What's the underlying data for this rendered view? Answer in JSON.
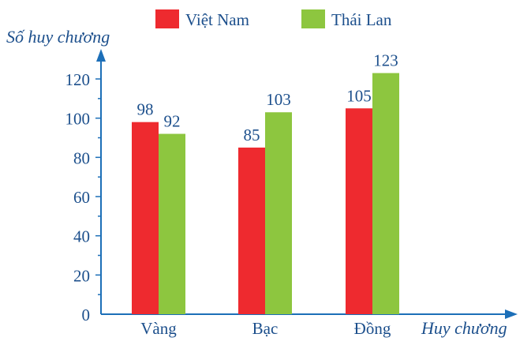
{
  "chart_data": {
    "type": "bar",
    "categories": [
      "Vàng",
      "Bạc",
      "Đồng"
    ],
    "series": [
      {
        "name": "Việt Nam",
        "values": [
          98,
          85,
          105
        ],
        "color": "#ee2a2f"
      },
      {
        "name": "Thái Lan",
        "values": [
          92,
          103,
          123
        ],
        "color": "#8dc63f"
      }
    ],
    "ylabel": "Số huy chương",
    "xlabel": "Huy chương",
    "ylim": [
      0,
      120
    ],
    "yticks": [
      0,
      20,
      40,
      60,
      80,
      100,
      120
    ],
    "grid": false,
    "legend": "top",
    "axis_color": "#1c6fb8",
    "text_color": "#1c4f8c"
  }
}
